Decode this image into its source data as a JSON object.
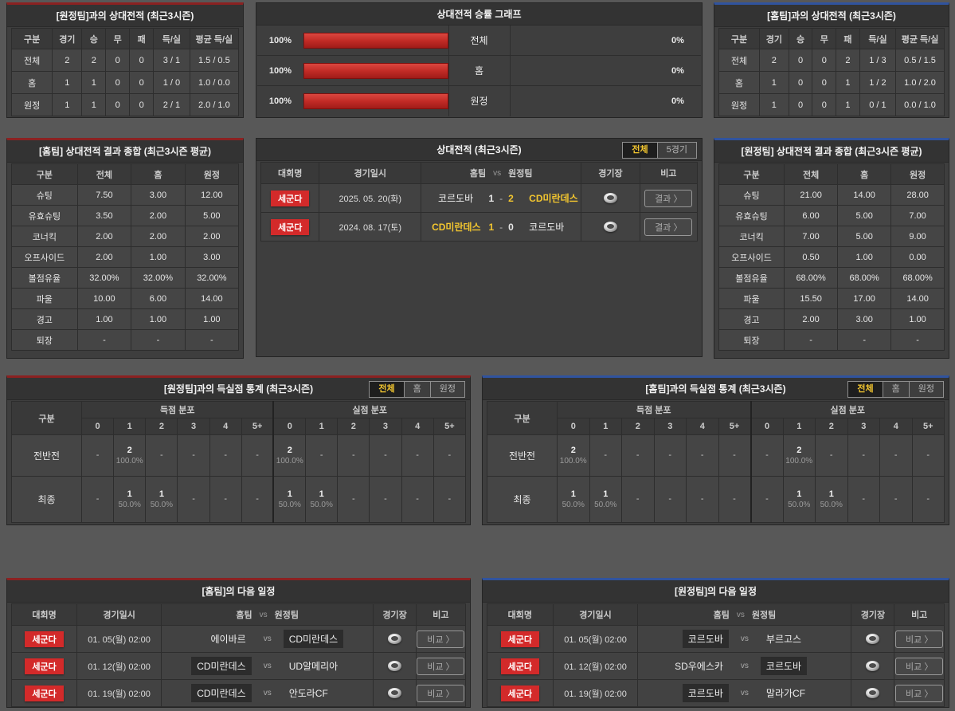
{
  "ui": {
    "vs": "vs",
    "dash": "-"
  },
  "colors": {
    "home_accent": "#8b2121",
    "away_accent": "#30539e",
    "badge_red": "#d32a2a",
    "highlight_yellow": "#f3c62f",
    "bar_red": "#c22b26"
  },
  "tl": {
    "title": "[원정팀]과의 상대전적 (최근3시즌)",
    "headers": [
      "구분",
      "경기",
      "승",
      "무",
      "패",
      "득/실",
      "평균 득/실"
    ],
    "rows": [
      [
        "전체",
        "2",
        "2",
        "0",
        "0",
        "3 / 1",
        "1.5 / 0.5"
      ],
      [
        "홈",
        "1",
        "1",
        "0",
        "0",
        "1 / 0",
        "1.0 / 0.0"
      ],
      [
        "원정",
        "1",
        "1",
        "0",
        "0",
        "2 / 1",
        "2.0 / 1.0"
      ]
    ]
  },
  "chart": {
    "title": "상대전적 승률 그래프",
    "type": "bar",
    "rows": [
      {
        "lpct": "100%",
        "lval": 100,
        "label": "전체",
        "rval": 0,
        "rpct": "0%"
      },
      {
        "lpct": "100%",
        "lval": 100,
        "label": "홈",
        "rval": 0,
        "rpct": "0%"
      },
      {
        "lpct": "100%",
        "lval": 100,
        "label": "원정",
        "rval": 0,
        "rpct": "0%"
      }
    ]
  },
  "tr2": {
    "title": "[홈팀]과의 상대전적 (최근3시즌)",
    "headers": [
      "구분",
      "경기",
      "승",
      "무",
      "패",
      "득/실",
      "평균 득/실"
    ],
    "rows": [
      [
        "전체",
        "2",
        "0",
        "0",
        "2",
        "1 / 3",
        "0.5 / 1.5"
      ],
      [
        "홈",
        "1",
        "0",
        "0",
        "1",
        "1 / 2",
        "1.0 / 2.0"
      ],
      [
        "원정",
        "1",
        "0",
        "0",
        "1",
        "0 / 1",
        "0.0 / 1.0"
      ]
    ]
  },
  "ml": {
    "title": "[홈팀] 상대전적 결과 종합 (최근3시즌 평균)",
    "headers": [
      "구분",
      "전체",
      "홈",
      "원정"
    ],
    "rows": [
      [
        "슈팅",
        "7.50",
        "3.00",
        "12.00"
      ],
      [
        "유효슈팅",
        "3.50",
        "2.00",
        "5.00"
      ],
      [
        "코너킥",
        "2.00",
        "2.00",
        "2.00"
      ],
      [
        "오프사이드",
        "2.00",
        "1.00",
        "3.00"
      ],
      [
        "볼점유율",
        "32.00%",
        "32.00%",
        "32.00%"
      ],
      [
        "파울",
        "10.00",
        "6.00",
        "14.00"
      ],
      [
        "경고",
        "1.00",
        "1.00",
        "1.00"
      ],
      [
        "퇴장",
        "-",
        "-",
        "-"
      ]
    ]
  },
  "mc": {
    "title": "상대전적 (최근3시즌)",
    "tabs": [
      "전체",
      "5경기"
    ],
    "headers": [
      "대회명",
      "경기일시",
      "홈팀",
      "vs",
      "원정팀",
      "경기장",
      "비고"
    ],
    "btn": "결과 〉",
    "rows": [
      {
        "league": "세군다",
        "date": "2025. 05. 20(화)",
        "home": "코르도바",
        "hs": "1",
        "as": "2",
        "away": "CD미란데스",
        "home_win": false,
        "away_win": true
      },
      {
        "league": "세군다",
        "date": "2024. 08. 17(토)",
        "home": "CD미란데스",
        "hs": "1",
        "as": "0",
        "away": "코르도바",
        "home_win": true,
        "away_win": false
      }
    ]
  },
  "mr": {
    "title": "[원정팀] 상대전적 결과 종합 (최근3시즌 평균)",
    "headers": [
      "구분",
      "전체",
      "홈",
      "원정"
    ],
    "rows": [
      [
        "슈팅",
        "21.00",
        "14.00",
        "28.00"
      ],
      [
        "유효슈팅",
        "6.00",
        "5.00",
        "7.00"
      ],
      [
        "코너킥",
        "7.00",
        "5.00",
        "9.00"
      ],
      [
        "오프사이드",
        "0.50",
        "1.00",
        "0.00"
      ],
      [
        "볼점유율",
        "68.00%",
        "68.00%",
        "68.00%"
      ],
      [
        "파울",
        "15.50",
        "17.00",
        "14.00"
      ],
      [
        "경고",
        "2.00",
        "3.00",
        "1.00"
      ],
      [
        "퇴장",
        "-",
        "-",
        "-"
      ]
    ]
  },
  "sl": {
    "title": "[원정팀]과의 득실점 통계 (최근3시즌)",
    "tabs": [
      "전체",
      "홈",
      "원정"
    ],
    "corner": "구분",
    "groups": [
      "득점 분포",
      "실점 분포"
    ],
    "nums": [
      "0",
      "1",
      "2",
      "3",
      "4",
      "5+"
    ],
    "rows": [
      {
        "label": "전반전",
        "cells": [
          {
            "c": "-",
            "p": ""
          },
          {
            "c": "2",
            "p": "100.0%"
          },
          {
            "c": "-",
            "p": ""
          },
          {
            "c": "-",
            "p": ""
          },
          {
            "c": "-",
            "p": ""
          },
          {
            "c": "-",
            "p": ""
          },
          {
            "c": "2",
            "p": "100.0%"
          },
          {
            "c": "-",
            "p": ""
          },
          {
            "c": "-",
            "p": ""
          },
          {
            "c": "-",
            "p": ""
          },
          {
            "c": "-",
            "p": ""
          },
          {
            "c": "-",
            "p": ""
          }
        ]
      },
      {
        "label": "최종",
        "cells": [
          {
            "c": "-",
            "p": ""
          },
          {
            "c": "1",
            "p": "50.0%"
          },
          {
            "c": "1",
            "p": "50.0%"
          },
          {
            "c": "-",
            "p": ""
          },
          {
            "c": "-",
            "p": ""
          },
          {
            "c": "-",
            "p": ""
          },
          {
            "c": "1",
            "p": "50.0%"
          },
          {
            "c": "1",
            "p": "50.0%"
          },
          {
            "c": "-",
            "p": ""
          },
          {
            "c": "-",
            "p": ""
          },
          {
            "c": "-",
            "p": ""
          },
          {
            "c": "-",
            "p": ""
          }
        ]
      }
    ]
  },
  "sr": {
    "title": "[홈팀]과의 득실점 통계 (최근3시즌)",
    "tabs": [
      "전체",
      "홈",
      "원정"
    ],
    "corner": "구분",
    "groups": [
      "득점 분포",
      "실점 분포"
    ],
    "nums": [
      "0",
      "1",
      "2",
      "3",
      "4",
      "5+"
    ],
    "rows": [
      {
        "label": "전반전",
        "cells": [
          {
            "c": "2",
            "p": "100.0%"
          },
          {
            "c": "-",
            "p": ""
          },
          {
            "c": "-",
            "p": ""
          },
          {
            "c": "-",
            "p": ""
          },
          {
            "c": "-",
            "p": ""
          },
          {
            "c": "-",
            "p": ""
          },
          {
            "c": "-",
            "p": ""
          },
          {
            "c": "2",
            "p": "100.0%"
          },
          {
            "c": "-",
            "p": ""
          },
          {
            "c": "-",
            "p": ""
          },
          {
            "c": "-",
            "p": ""
          },
          {
            "c": "-",
            "p": ""
          }
        ]
      },
      {
        "label": "최종",
        "cells": [
          {
            "c": "1",
            "p": "50.0%"
          },
          {
            "c": "1",
            "p": "50.0%"
          },
          {
            "c": "-",
            "p": ""
          },
          {
            "c": "-",
            "p": ""
          },
          {
            "c": "-",
            "p": ""
          },
          {
            "c": "-",
            "p": ""
          },
          {
            "c": "-",
            "p": ""
          },
          {
            "c": "1",
            "p": "50.0%"
          },
          {
            "c": "1",
            "p": "50.0%"
          },
          {
            "c": "-",
            "p": ""
          },
          {
            "c": "-",
            "p": ""
          },
          {
            "c": "-",
            "p": ""
          }
        ]
      }
    ]
  },
  "bl": {
    "title": "[홈팀]의 다음 일정",
    "headers": [
      "대회명",
      "경기일시",
      "홈팀",
      "vs",
      "원정팀",
      "경기장",
      "비고"
    ],
    "btn": "비교 〉",
    "rows": [
      {
        "league": "세군다",
        "date": "01. 05(월) 02:00",
        "home": "에이바르",
        "home_hl": false,
        "away": "CD미란데스",
        "away_hl": true
      },
      {
        "league": "세군다",
        "date": "01. 12(월) 02:00",
        "home": "CD미란데스",
        "home_hl": true,
        "away": "UD알메리아",
        "away_hl": false
      },
      {
        "league": "세군다",
        "date": "01. 19(월) 02:00",
        "home": "CD미란데스",
        "home_hl": true,
        "away": "안도라CF",
        "away_hl": false
      }
    ]
  },
  "br": {
    "title": "[원정팀]의 다음 일정",
    "headers": [
      "대회명",
      "경기일시",
      "홈팀",
      "vs",
      "원정팀",
      "경기장",
      "비고"
    ],
    "btn": "비교 〉",
    "rows": [
      {
        "league": "세군다",
        "date": "01. 05(월) 02:00",
        "home": "코르도바",
        "home_hl": true,
        "away": "부르고스",
        "away_hl": false
      },
      {
        "league": "세군다",
        "date": "01. 12(월) 02:00",
        "home": "SD우에스카",
        "home_hl": false,
        "away": "코르도바",
        "away_hl": true
      },
      {
        "league": "세군다",
        "date": "01. 19(월) 02:00",
        "home": "코르도바",
        "home_hl": true,
        "away": "말라가CF",
        "away_hl": false
      }
    ]
  }
}
